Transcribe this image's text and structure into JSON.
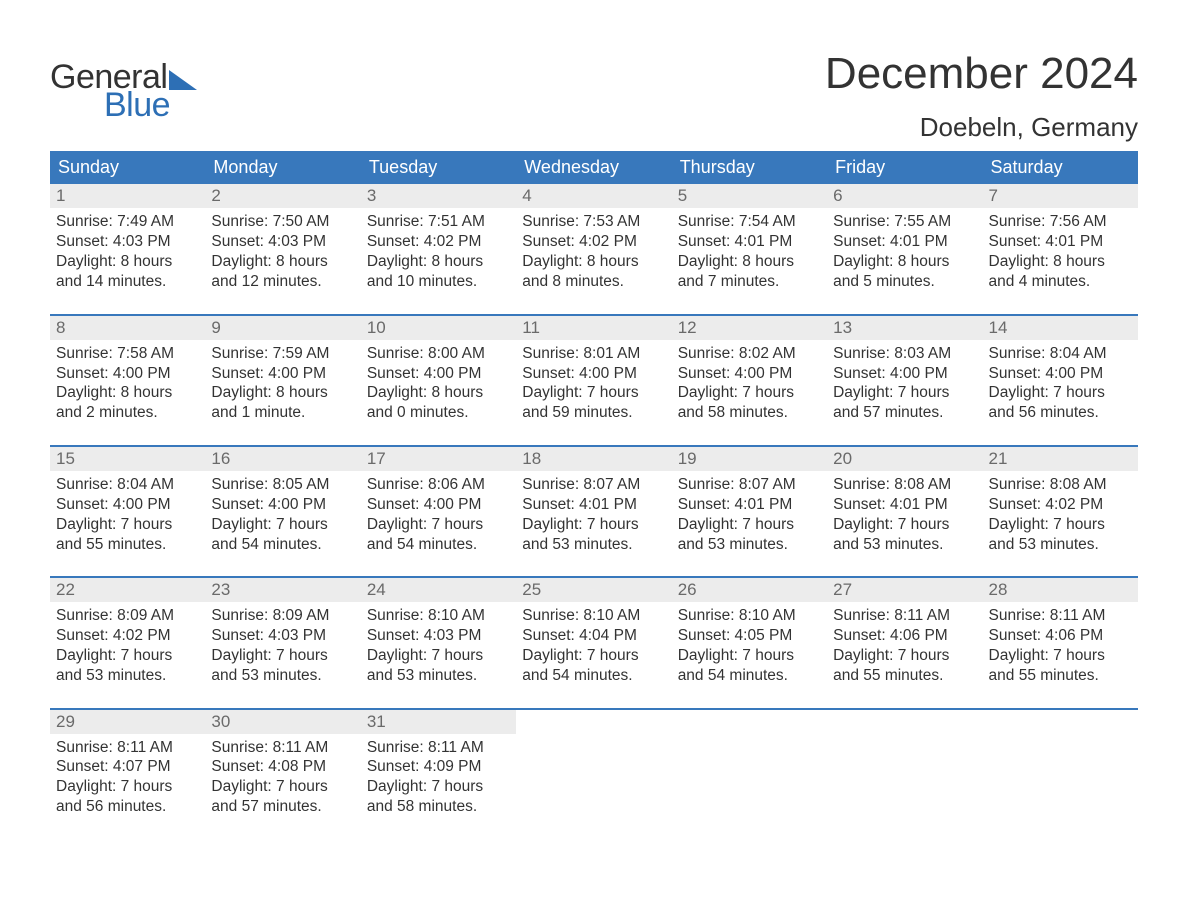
{
  "logo": {
    "general": "General",
    "blue": "Blue",
    "accent_color": "#2d6fb5"
  },
  "title": "December 2024",
  "location": "Doebeln, Germany",
  "colors": {
    "header_bg": "#3878bc",
    "header_text": "#ffffff",
    "daynum_bg": "#ececec",
    "daynum_text": "#6a6a6a",
    "body_text": "#333333",
    "page_bg": "#ffffff",
    "row_border": "#3878bc"
  },
  "day_headers": [
    "Sunday",
    "Monday",
    "Tuesday",
    "Wednesday",
    "Thursday",
    "Friday",
    "Saturday"
  ],
  "weeks": [
    [
      {
        "n": "1",
        "sr": "7:49 AM",
        "ss": "4:03 PM",
        "dl": "8 hours and 14 minutes."
      },
      {
        "n": "2",
        "sr": "7:50 AM",
        "ss": "4:03 PM",
        "dl": "8 hours and 12 minutes."
      },
      {
        "n": "3",
        "sr": "7:51 AM",
        "ss": "4:02 PM",
        "dl": "8 hours and 10 minutes."
      },
      {
        "n": "4",
        "sr": "7:53 AM",
        "ss": "4:02 PM",
        "dl": "8 hours and 8 minutes."
      },
      {
        "n": "5",
        "sr": "7:54 AM",
        "ss": "4:01 PM",
        "dl": "8 hours and 7 minutes."
      },
      {
        "n": "6",
        "sr": "7:55 AM",
        "ss": "4:01 PM",
        "dl": "8 hours and 5 minutes."
      },
      {
        "n": "7",
        "sr": "7:56 AM",
        "ss": "4:01 PM",
        "dl": "8 hours and 4 minutes."
      }
    ],
    [
      {
        "n": "8",
        "sr": "7:58 AM",
        "ss": "4:00 PM",
        "dl": "8 hours and 2 minutes."
      },
      {
        "n": "9",
        "sr": "7:59 AM",
        "ss": "4:00 PM",
        "dl": "8 hours and 1 minute."
      },
      {
        "n": "10",
        "sr": "8:00 AM",
        "ss": "4:00 PM",
        "dl": "8 hours and 0 minutes."
      },
      {
        "n": "11",
        "sr": "8:01 AM",
        "ss": "4:00 PM",
        "dl": "7 hours and 59 minutes."
      },
      {
        "n": "12",
        "sr": "8:02 AM",
        "ss": "4:00 PM",
        "dl": "7 hours and 58 minutes."
      },
      {
        "n": "13",
        "sr": "8:03 AM",
        "ss": "4:00 PM",
        "dl": "7 hours and 57 minutes."
      },
      {
        "n": "14",
        "sr": "8:04 AM",
        "ss": "4:00 PM",
        "dl": "7 hours and 56 minutes."
      }
    ],
    [
      {
        "n": "15",
        "sr": "8:04 AM",
        "ss": "4:00 PM",
        "dl": "7 hours and 55 minutes."
      },
      {
        "n": "16",
        "sr": "8:05 AM",
        "ss": "4:00 PM",
        "dl": "7 hours and 54 minutes."
      },
      {
        "n": "17",
        "sr": "8:06 AM",
        "ss": "4:00 PM",
        "dl": "7 hours and 54 minutes."
      },
      {
        "n": "18",
        "sr": "8:07 AM",
        "ss": "4:01 PM",
        "dl": "7 hours and 53 minutes."
      },
      {
        "n": "19",
        "sr": "8:07 AM",
        "ss": "4:01 PM",
        "dl": "7 hours and 53 minutes."
      },
      {
        "n": "20",
        "sr": "8:08 AM",
        "ss": "4:01 PM",
        "dl": "7 hours and 53 minutes."
      },
      {
        "n": "21",
        "sr": "8:08 AM",
        "ss": "4:02 PM",
        "dl": "7 hours and 53 minutes."
      }
    ],
    [
      {
        "n": "22",
        "sr": "8:09 AM",
        "ss": "4:02 PM",
        "dl": "7 hours and 53 minutes."
      },
      {
        "n": "23",
        "sr": "8:09 AM",
        "ss": "4:03 PM",
        "dl": "7 hours and 53 minutes."
      },
      {
        "n": "24",
        "sr": "8:10 AM",
        "ss": "4:03 PM",
        "dl": "7 hours and 53 minutes."
      },
      {
        "n": "25",
        "sr": "8:10 AM",
        "ss": "4:04 PM",
        "dl": "7 hours and 54 minutes."
      },
      {
        "n": "26",
        "sr": "8:10 AM",
        "ss": "4:05 PM",
        "dl": "7 hours and 54 minutes."
      },
      {
        "n": "27",
        "sr": "8:11 AM",
        "ss": "4:06 PM",
        "dl": "7 hours and 55 minutes."
      },
      {
        "n": "28",
        "sr": "8:11 AM",
        "ss": "4:06 PM",
        "dl": "7 hours and 55 minutes."
      }
    ],
    [
      {
        "n": "29",
        "sr": "8:11 AM",
        "ss": "4:07 PM",
        "dl": "7 hours and 56 minutes."
      },
      {
        "n": "30",
        "sr": "8:11 AM",
        "ss": "4:08 PM",
        "dl": "7 hours and 57 minutes."
      },
      {
        "n": "31",
        "sr": "8:11 AM",
        "ss": "4:09 PM",
        "dl": "7 hours and 58 minutes."
      },
      null,
      null,
      null,
      null
    ]
  ],
  "labels": {
    "sunrise": "Sunrise: ",
    "sunset": "Sunset: ",
    "daylight": "Daylight: "
  }
}
